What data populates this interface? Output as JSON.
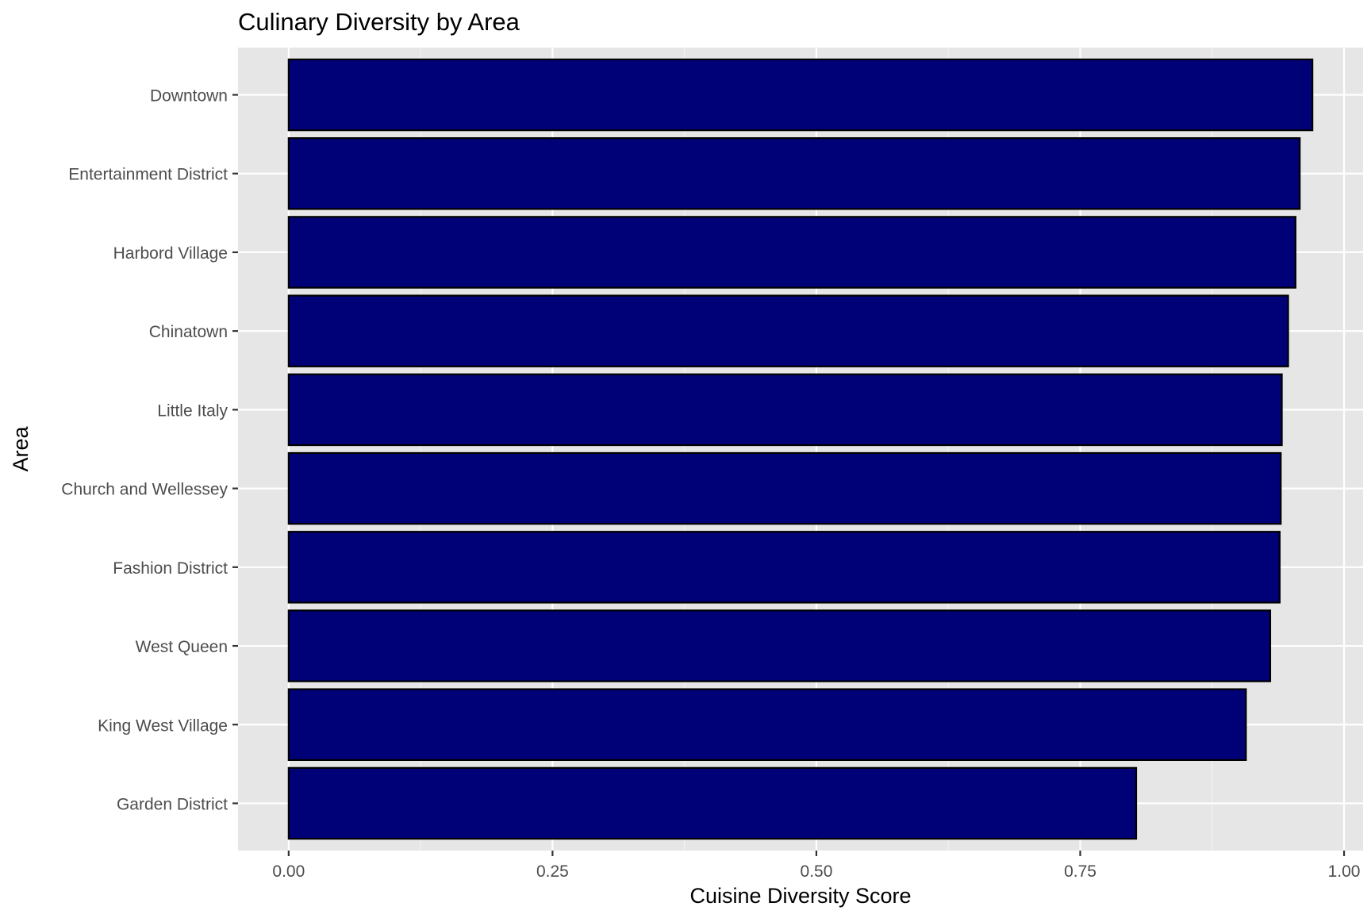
{
  "chart_data": {
    "type": "bar",
    "orientation": "horizontal",
    "title": "Culinary Diversity by Area",
    "xlabel": "Cuisine Diversity Score",
    "ylabel": "Area",
    "categories": [
      "Downtown",
      "Entertainment District",
      "Harbord Village",
      "Chinatown",
      "Little Italy",
      "Church and Wellessey",
      "Fashion District",
      "West Queen",
      "King West Village",
      "Garden District"
    ],
    "values": [
      0.97,
      0.958,
      0.954,
      0.947,
      0.941,
      0.94,
      0.939,
      0.93,
      0.907,
      0.803
    ],
    "xlim": [
      -0.048,
      1.018
    ],
    "xticks": [
      0,
      0.25,
      0.5,
      0.75,
      1
    ],
    "xtick_labels": [
      "0.00",
      "0.25",
      "0.50",
      "0.75",
      "1.00"
    ],
    "grid": true,
    "legend": "none",
    "colors": {
      "bar_fill": "#000077",
      "bar_outline": "#000000",
      "panel_background": "#e6e6e6",
      "grid_major": "#ffffff",
      "grid_minor": "#f2f2f2",
      "tick_label": "#4d4d4d",
      "tick_mark": "#333333",
      "title": "#000000"
    }
  }
}
